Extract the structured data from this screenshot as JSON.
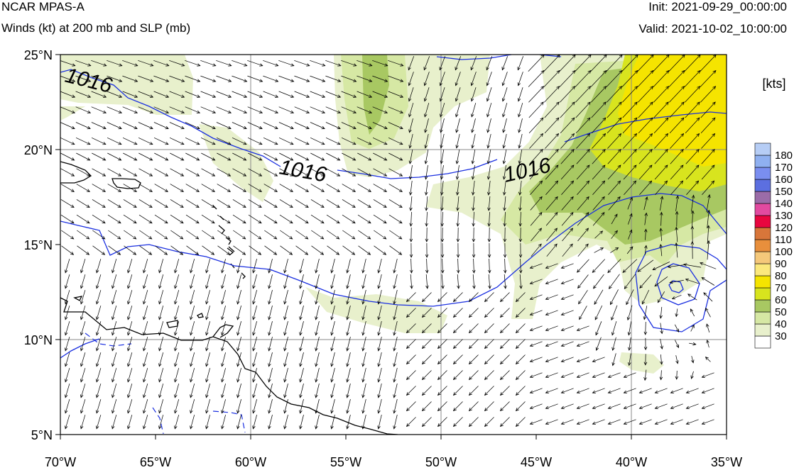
{
  "header": {
    "model": "NCAR MPAS-A",
    "field": "Winds (kt) at 200 mb and SLP (mb)",
    "init": "Init: 2021-09-29_00:00:00",
    "valid": "Valid: 2021-10-02_10:00:00"
  },
  "axes": {
    "lon_labels": [
      "70°W",
      "65°W",
      "60°W",
      "55°W",
      "50°W",
      "45°W",
      "40°W",
      "35°W"
    ],
    "lat_labels": [
      "25°N",
      "20°N",
      "15°N",
      "10°N",
      "5°N"
    ],
    "lon_range": [
      -70,
      -35
    ],
    "lat_range": [
      5,
      25
    ],
    "grid": true
  },
  "isobar_labels": [
    "1016",
    "1016",
    "1016"
  ],
  "colorbar": {
    "unit": "[kts]",
    "levels": [
      "180",
      "170",
      "160",
      "150",
      "140",
      "130",
      "120",
      "110",
      "100",
      "90",
      "80",
      "70",
      "60",
      "50",
      "40",
      "30"
    ],
    "colors": [
      "#ffffff",
      "#e8f0cc",
      "#d6e8a4",
      "#a8c862",
      "#d8e41e",
      "#f5e400",
      "#fbe87c",
      "#f5c87a",
      "#e88f3c",
      "#d8763a",
      "#e8063f",
      "#e24aa0",
      "#9b6ca8",
      "#5c6fe0",
      "#7a8ef0",
      "#8fb0f0",
      "#b6cdf5"
    ]
  },
  "colors": {
    "isobar": "#1a2fe0",
    "coast": "#000000",
    "vector": "#000000"
  }
}
